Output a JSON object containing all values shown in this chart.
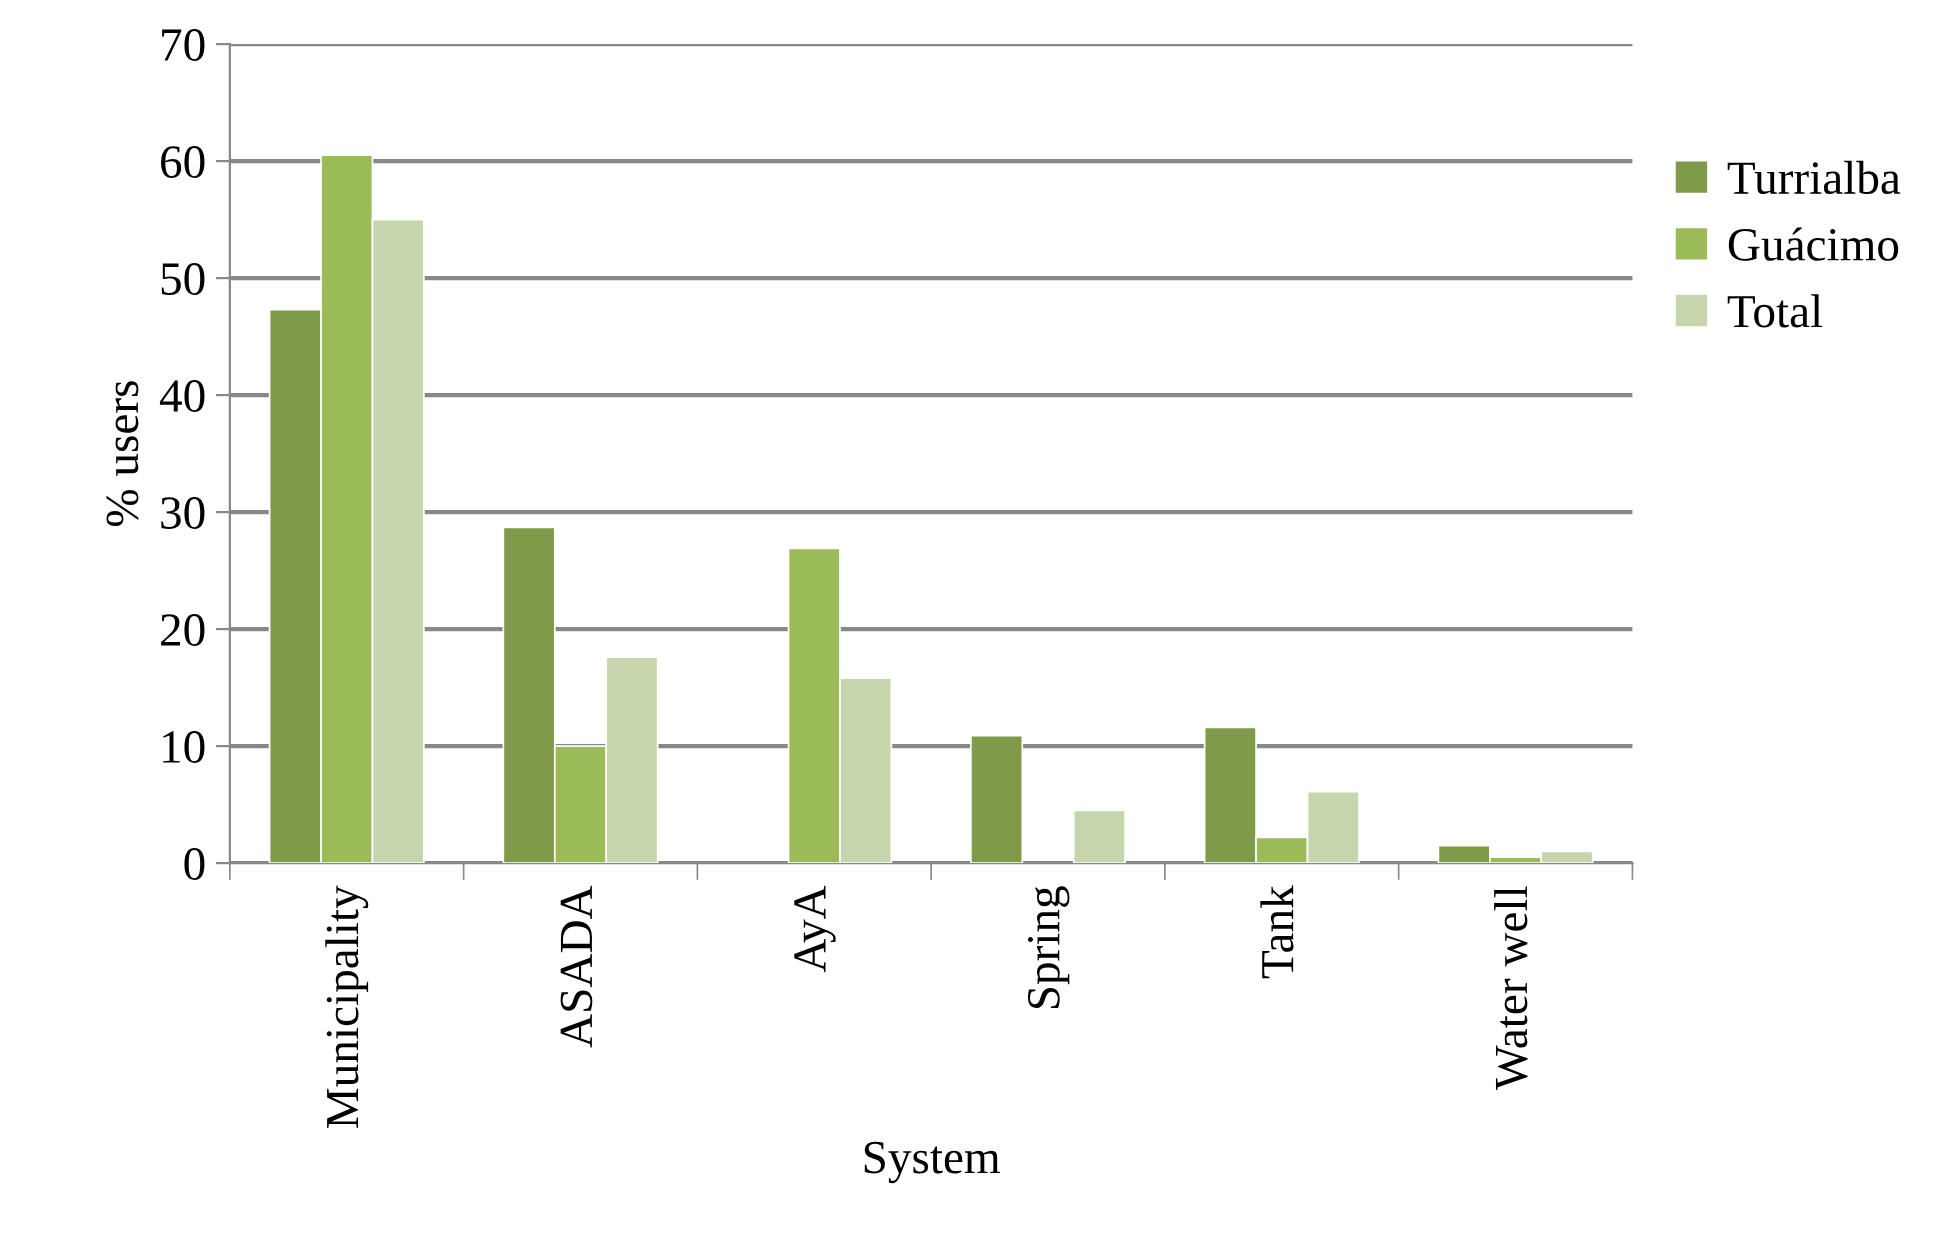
{
  "chart_data": {
    "type": "bar",
    "xlabel": "System",
    "ylabel": "% users",
    "categories": [
      "Municipality",
      "ASADA",
      "AyA",
      "Spring",
      "Tank",
      "Water well"
    ],
    "series": [
      {
        "name": "Turrialba",
        "color": "#7f9a48",
        "values": [
          47.3,
          28.7,
          null,
          10.9,
          11.6,
          1.5
        ]
      },
      {
        "name": "Guácimo",
        "color": "#9bbb59",
        "values": [
          60.5,
          10.0,
          26.9,
          null,
          2.2,
          0.5
        ]
      },
      {
        "name": "Total",
        "color": "#c6d6ac",
        "values": [
          55.0,
          17.6,
          15.8,
          4.5,
          6.1,
          1.0
        ]
      }
    ],
    "ylim": [
      0,
      70
    ],
    "yticks": [
      0,
      10,
      20,
      30,
      40,
      50,
      60,
      70
    ],
    "grid": "y",
    "legend": "right"
  }
}
